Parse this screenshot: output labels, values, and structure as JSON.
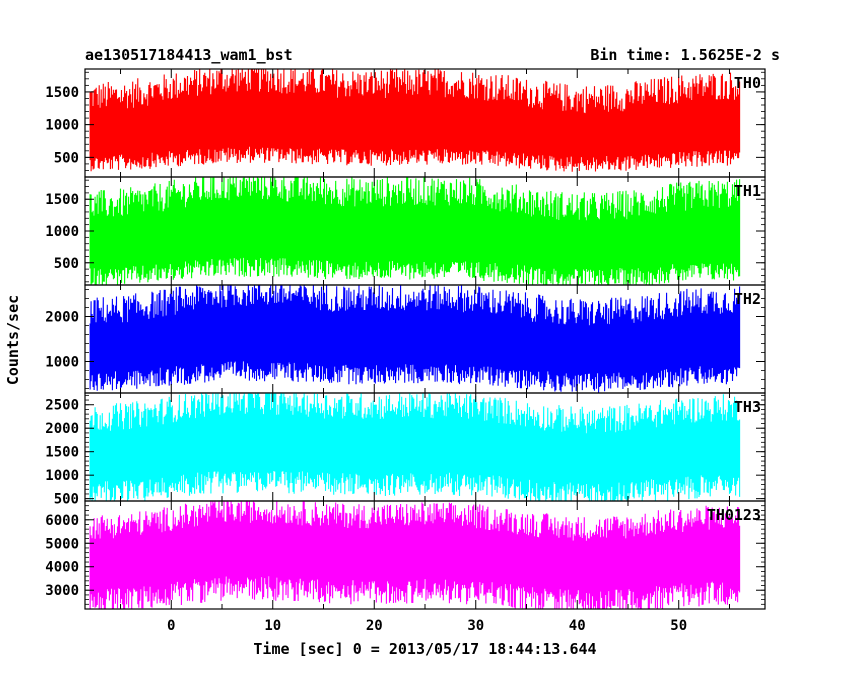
{
  "header": {
    "left_title": "ae130517184413_wam1_bst",
    "right_title": "Bin time: 1.5625E-2 s"
  },
  "axes": {
    "xlabel": "Time [sec] 0 = 2013/05/17 18:44:13.644",
    "ylabel": "Counts/sec"
  },
  "chart_data": {
    "type": "line",
    "title": "ae130517184413_wam1_bst",
    "subtitle": "Bin time: 1.5625E-2 s",
    "xlabel": "Time [sec] 0 = 2013/05/17 18:44:13.644",
    "ylabel": "Counts/sec",
    "xlim": [
      -8.5,
      58.5
    ],
    "x_ticks": [
      0,
      10,
      20,
      30,
      40,
      50
    ],
    "x_data_range": [
      -8,
      56
    ],
    "bin_time_s": 0.015625,
    "grid": false,
    "legend": "none",
    "panels": [
      {
        "name": "TH0",
        "color": "#ff0000",
        "ylim": [
          200,
          1850
        ],
        "y_ticks": [
          500,
          1000,
          1500
        ],
        "baseline": 800,
        "noise_low": 350,
        "noise_high": 1800
      },
      {
        "name": "TH1",
        "color": "#00ff00",
        "ylim": [
          150,
          1850
        ],
        "y_ticks": [
          500,
          1000,
          1500
        ],
        "baseline": 750,
        "noise_low": 200,
        "noise_high": 1800
      },
      {
        "name": "TH2",
        "color": "#0000ff",
        "ylim": [
          300,
          2700
        ],
        "y_ticks": [
          1000,
          2000
        ],
        "baseline": 1250,
        "noise_low": 450,
        "noise_high": 2650
      },
      {
        "name": "TH3",
        "color": "#00ffff",
        "ylim": [
          450,
          2750
        ],
        "y_ticks": [
          500,
          1000,
          1500,
          2000,
          2500
        ],
        "baseline": 1400,
        "noise_low": 500,
        "noise_high": 2700
      },
      {
        "name": "TH0123",
        "color": "#ff00ff",
        "ylim": [
          2200,
          6800
        ],
        "y_ticks": [
          3000,
          4000,
          5000,
          6000
        ],
        "baseline": 4200,
        "noise_low": 2300,
        "noise_high": 6600
      }
    ]
  }
}
